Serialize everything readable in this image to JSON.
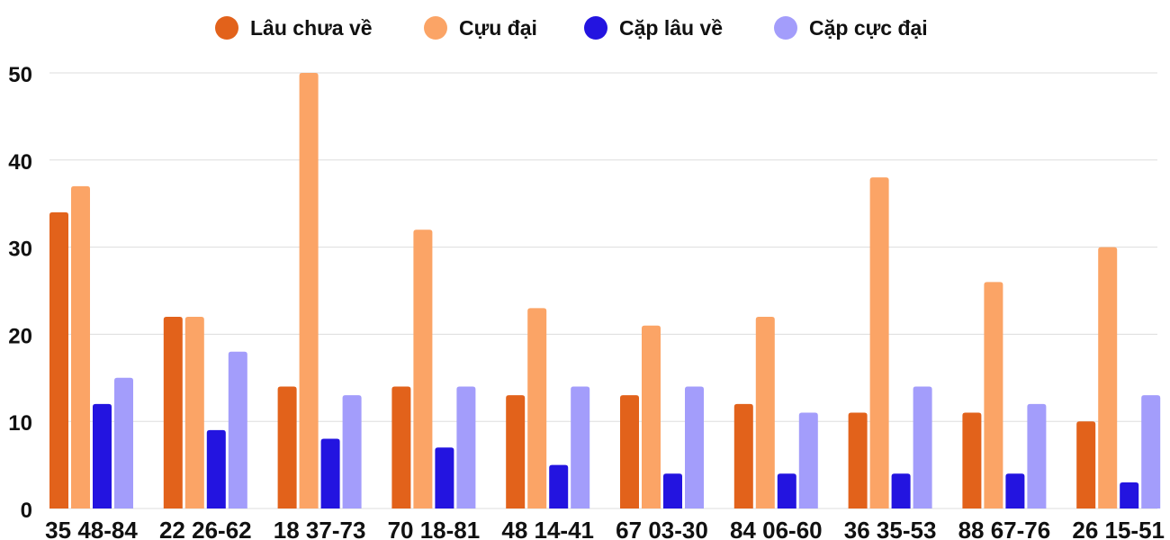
{
  "chart_data": {
    "type": "bar",
    "categories": [
      "35 48-84",
      "22 26-62",
      "18 37-73",
      "70 18-81",
      "48 14-41",
      "67 03-30",
      "84 06-60",
      "36 35-53",
      "88 67-76",
      "26 15-51"
    ],
    "series": [
      {
        "name": "Lâu chưa về",
        "color": "#e2621b",
        "values": [
          34,
          22,
          14,
          14,
          13,
          13,
          12,
          11,
          11,
          10
        ]
      },
      {
        "name": "Cựu đại",
        "color": "#fba466",
        "values": [
          37,
          22,
          50,
          32,
          23,
          21,
          22,
          38,
          26,
          30
        ]
      },
      {
        "name": "Cặp lâu về",
        "color": "#2314e0",
        "values": [
          12,
          9,
          8,
          7,
          5,
          4,
          4,
          4,
          4,
          3
        ]
      },
      {
        "name": "Cặp cực đại",
        "color": "#a39dfb",
        "values": [
          15,
          18,
          13,
          14,
          14,
          14,
          11,
          14,
          12,
          13
        ]
      }
    ],
    "yticks": [
      0,
      10,
      20,
      30,
      40,
      50
    ],
    "ylim": [
      0,
      50
    ],
    "grid": true,
    "legend": "top-center",
    "title": "",
    "xlabel": "",
    "ylabel": ""
  }
}
